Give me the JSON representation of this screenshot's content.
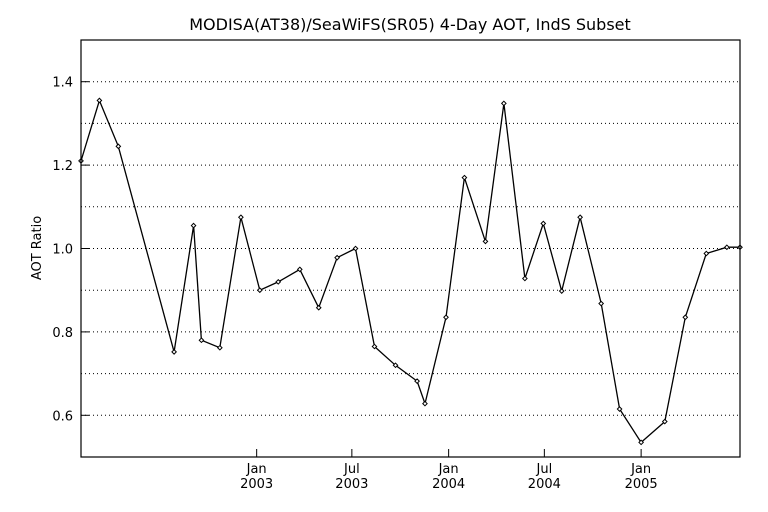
{
  "chart_data": {
    "type": "line",
    "title": "MODISA(AT38)/SeaWiFS(SR05) 4-Day AOT, IndS Subset",
    "xlabel": "",
    "ylabel": "AOT Ratio",
    "xlim": [
      "2002-02-01",
      "2005-07-08"
    ],
    "ylim": [
      0.5,
      1.5
    ],
    "y_ticks": [
      0.6,
      0.8,
      1.0,
      1.2,
      1.4
    ],
    "y_tick_labels": [
      "0.6",
      "0.8",
      "1.0",
      "1.2",
      "1.4"
    ],
    "y_gridlines": [
      0.6,
      0.7,
      0.8,
      0.9,
      1.0,
      1.1,
      1.2,
      1.3,
      1.4
    ],
    "x_ticks": [
      {
        "date": "2003-01-01",
        "month": "Jan",
        "year": "2003"
      },
      {
        "date": "2003-07-01",
        "month": "Jul",
        "year": "2003"
      },
      {
        "date": "2004-01-01",
        "month": "Jan",
        "year": "2004"
      },
      {
        "date": "2004-07-01",
        "month": "Jul",
        "year": "2004"
      },
      {
        "date": "2005-01-01",
        "month": "Jan",
        "year": "2005"
      }
    ],
    "grid": "horizontal dotted",
    "series": [
      {
        "points": [
          {
            "x": "2002-02-01",
            "y": 1.21
          },
          {
            "x": "2002-03-08",
            "y": 1.355
          },
          {
            "x": "2002-04-13",
            "y": 1.245
          },
          {
            "x": "2002-07-28",
            "y": 0.752
          },
          {
            "x": "2002-09-03",
            "y": 1.055
          },
          {
            "x": "2002-09-18",
            "y": 0.78
          },
          {
            "x": "2002-10-23",
            "y": 0.762
          },
          {
            "x": "2002-12-02",
            "y": 1.075
          },
          {
            "x": "2003-01-07",
            "y": 0.9
          },
          {
            "x": "2003-02-11",
            "y": 0.92
          },
          {
            "x": "2003-03-24",
            "y": 0.95
          },
          {
            "x": "2003-04-29",
            "y": 0.858
          },
          {
            "x": "2003-06-03",
            "y": 0.978
          },
          {
            "x": "2003-07-08",
            "y": 1.0
          },
          {
            "x": "2003-08-13",
            "y": 0.765
          },
          {
            "x": "2003-09-22",
            "y": 0.72
          },
          {
            "x": "2003-11-02",
            "y": 0.682
          },
          {
            "x": "2003-11-17",
            "y": 0.628
          },
          {
            "x": "2003-12-27",
            "y": 0.835
          },
          {
            "x": "2004-01-31",
            "y": 1.17
          },
          {
            "x": "2004-03-11",
            "y": 1.017
          },
          {
            "x": "2004-04-15",
            "y": 1.348
          },
          {
            "x": "2004-05-25",
            "y": 0.928
          },
          {
            "x": "2004-06-29",
            "y": 1.06
          },
          {
            "x": "2004-08-03",
            "y": 0.898
          },
          {
            "x": "2004-09-07",
            "y": 1.075
          },
          {
            "x": "2004-10-17",
            "y": 0.868
          },
          {
            "x": "2004-11-21",
            "y": 0.615
          },
          {
            "x": "2005-01-01",
            "y": 0.535
          },
          {
            "x": "2005-02-15",
            "y": 0.585
          },
          {
            "x": "2005-03-26",
            "y": 0.835
          },
          {
            "x": "2005-05-05",
            "y": 0.988
          },
          {
            "x": "2005-06-13",
            "y": 1.003
          },
          {
            "x": "2005-07-08",
            "y": 1.003
          }
        ]
      }
    ]
  }
}
